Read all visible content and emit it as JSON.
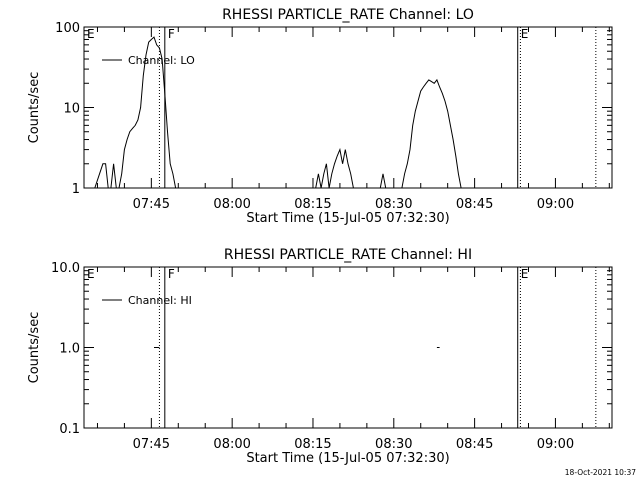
{
  "chart_data": [
    {
      "type": "line",
      "title": "RHESSI PARTICLE_RATE Channel: LO",
      "xlabel": "Start Time (15-Jul-05 07:32:30)",
      "ylabel": "Counts/sec",
      "yscale": "log",
      "ylim": [
        1,
        100
      ],
      "xlim": [
        "07:32:30",
        "09:10:30"
      ],
      "xticks": [
        "07:45",
        "08:00",
        "08:15",
        "08:30",
        "08:45",
        "09:00"
      ],
      "yticks": [
        "1",
        "10",
        "100"
      ],
      "grid": false,
      "legend": "top-left",
      "series": [
        {
          "name": "Channel: LO",
          "times": [
            "07:34:30",
            "07:36:00",
            "07:36:30",
            "07:37:00",
            "07:37:30",
            "07:38:00",
            "07:38:30",
            "07:39:00",
            "07:39:30",
            "07:40:00",
            "07:40:30",
            "07:41:00",
            "07:41:30",
            "07:42:00",
            "07:42:30",
            "07:43:00",
            "07:43:30",
            "07:44:00",
            "07:44:30",
            "07:45:00",
            "07:45:30",
            "07:46:00",
            "07:46:30",
            "07:47:00",
            "07:47:30",
            "07:48:00",
            "07:48:30",
            "07:49:00",
            "07:49:30",
            "07:50:00",
            "07:50:30",
            "07:51:00",
            "07:51:30",
            "07:52:00",
            "08:15:30",
            "08:16:00",
            "08:16:30",
            "08:17:00",
            "08:17:30",
            "08:18:00",
            "08:18:30",
            "08:19:00",
            "08:19:30",
            "08:20:00",
            "08:20:30",
            "08:21:00",
            "08:21:30",
            "08:22:00",
            "08:22:30",
            "08:23:00",
            "08:27:30",
            "08:28:00",
            "08:28:30",
            "08:29:00",
            "08:31:30",
            "08:32:00",
            "08:32:30",
            "08:33:00",
            "08:33:30",
            "08:34:00",
            "08:34:30",
            "08:35:00",
            "08:35:30",
            "08:36:00",
            "08:36:30",
            "08:37:00",
            "08:37:30",
            "08:38:00",
            "08:38:30",
            "08:39:00",
            "08:39:30",
            "08:40:00",
            "08:40:30",
            "08:41:00",
            "08:41:30",
            "08:42:00",
            "08:42:30",
            "08:43:00"
          ],
          "values": [
            1,
            2,
            2,
            1,
            1,
            2,
            1,
            1,
            1.5,
            3,
            4,
            5,
            5.5,
            6,
            7,
            10,
            25,
            45,
            65,
            70,
            75,
            60,
            55,
            40,
            15,
            5,
            2,
            1.5,
            1,
            1,
            1,
            1,
            1,
            1,
            1,
            1.5,
            1,
            1.5,
            2,
            1,
            1.5,
            2,
            2.5,
            3,
            2,
            3,
            2,
            1.5,
            1,
            1,
            1,
            1.5,
            1,
            1,
            1,
            1.5,
            2,
            3,
            6,
            9,
            12,
            16,
            18,
            20,
            22,
            21,
            20,
            22,
            18,
            15,
            12,
            9,
            6,
            4,
            2.5,
            1.5,
            1,
            1
          ]
        }
      ],
      "annotations": [
        {
          "label": "E",
          "time": "07:32:30"
        },
        {
          "label": "F",
          "time": "07:47:30"
        },
        {
          "label": "E",
          "time": "08:53:00"
        }
      ],
      "solid_lines": [
        "07:47:30",
        "08:53:00"
      ],
      "dotted_lines": [
        "07:46:30",
        "08:53:30",
        "09:07:30"
      ]
    },
    {
      "type": "line",
      "title": "RHESSI PARTICLE_RATE Channel: HI",
      "xlabel": "Start Time (15-Jul-05 07:32:30)",
      "ylabel": "Counts/sec",
      "yscale": "log",
      "ylim": [
        0.1,
        10
      ],
      "xlim": [
        "07:32:30",
        "09:10:30"
      ],
      "xticks": [
        "07:45",
        "08:00",
        "08:15",
        "08:30",
        "08:45",
        "09:00"
      ],
      "yticks": [
        "0.1",
        "1.0",
        "10.0"
      ],
      "grid": false,
      "legend": "top-left",
      "series": [
        {
          "name": "Channel: HI",
          "segments": [
            {
              "times": [
                "07:45:30",
                "07:46:30"
              ],
              "values": [
                1,
                1
              ]
            },
            {
              "times": [
                "08:38:00",
                "08:38:30"
              ],
              "values": [
                1,
                1
              ]
            }
          ]
        }
      ],
      "annotations": [
        {
          "label": "E",
          "time": "07:32:30"
        },
        {
          "label": "F",
          "time": "07:47:30"
        },
        {
          "label": "E",
          "time": "08:53:00"
        }
      ],
      "solid_lines": [
        "07:47:30",
        "08:53:00"
      ],
      "dotted_lines": [
        "07:46:30",
        "08:53:30",
        "09:07:30"
      ]
    }
  ],
  "footer": {
    "timestamp": "18-Oct-2021 10:37"
  }
}
